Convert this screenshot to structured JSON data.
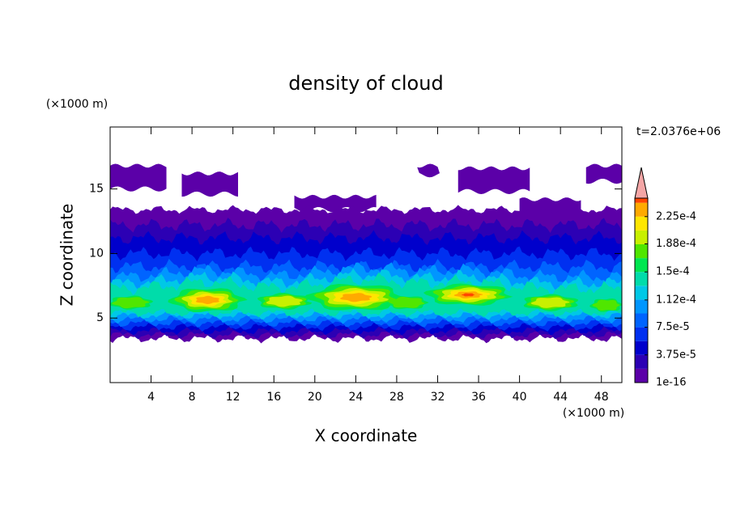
{
  "chart_data": {
    "type": "contour",
    "title": "density of cloud",
    "x_label": "X coordinate",
    "y_label": "Z coordinate",
    "x_unit": "(×1000 m)",
    "y_unit": "(×1000 m)",
    "time_label": "t=2.0376e+06",
    "xlim": [
      0,
      50
    ],
    "ylim": [
      0,
      19.8
    ],
    "xticks": [
      4,
      8,
      12,
      16,
      20,
      24,
      28,
      32,
      36,
      40,
      44,
      48
    ],
    "yticks": [
      5,
      10,
      15
    ],
    "levels": [
      1e-16,
      1.875e-05,
      3.75e-05,
      5.625e-05,
      7.5e-05,
      9.375e-05,
      0.0001125,
      0.00013125,
      0.00015,
      0.00016875,
      0.0001875,
      0.00020625,
      0.000225,
      0.00024375
    ],
    "colors": [
      "#5b00a8",
      "#2c00b4",
      "#0000cc",
      "#0030f0",
      "#0064ff",
      "#0096ff",
      "#00c8e6",
      "#00dcaa",
      "#00e650",
      "#50e600",
      "#c8f000",
      "#ffe600",
      "#ffaa00",
      "#ff4600"
    ],
    "over_color": "#f4a6a6",
    "clim": [
      0,
      0.00025
    ],
    "colorbar_ticks": [
      {
        "value": 1e-16,
        "label": "1e-16"
      },
      {
        "value": 3.75e-05,
        "label": "3.75e-5"
      },
      {
        "value": 7.5e-05,
        "label": "7.5e-5"
      },
      {
        "value": 0.000112,
        "label": "1.12e-4"
      },
      {
        "value": 0.00015,
        "label": "1.5e-4"
      },
      {
        "value": 0.000188,
        "label": "1.88e-4"
      },
      {
        "value": 0.000225,
        "label": "2.25e-4"
      }
    ]
  }
}
